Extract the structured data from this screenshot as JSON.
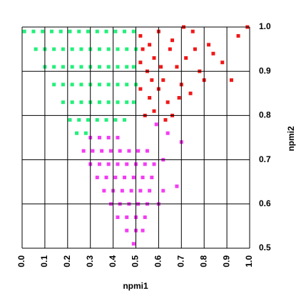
{
  "chart_data": {
    "type": "scatter",
    "xlabel": "npmi1",
    "ylabel": "npmi2",
    "xlim": [
      0,
      1
    ],
    "ylim": [
      0.5,
      1
    ],
    "xticks": [
      {
        "value": 0,
        "label": "0.0"
      },
      0.1,
      0.2,
      0.3,
      0.4,
      0.5,
      0.6,
      0.7,
      0.8,
      0.9,
      {
        "value": 1,
        "label": "1.0"
      }
    ],
    "yticks": [
      0.5,
      0.6,
      0.7,
      0.8,
      0.9,
      {
        "value": 1,
        "label": "1.0"
      }
    ],
    "grid": true,
    "y_axis_side": "right",
    "series": [
      {
        "color": "#22f07a",
        "x": [
          0.01,
          0.05,
          0.09,
          0.13,
          0.17,
          0.21,
          0.25,
          0.29,
          0.33,
          0.37,
          0.41,
          0.45,
          0.49,
          0.06,
          0.1,
          0.14,
          0.18,
          0.22,
          0.26,
          0.3,
          0.34,
          0.38,
          0.42,
          0.46,
          0.5,
          0.1,
          0.14,
          0.18,
          0.22,
          0.26,
          0.3,
          0.34,
          0.38,
          0.42,
          0.46,
          0.49,
          0.14,
          0.18,
          0.22,
          0.26,
          0.3,
          0.34,
          0.38,
          0.42,
          0.46,
          0.5,
          0.18,
          0.22,
          0.26,
          0.3,
          0.34,
          0.38,
          0.42,
          0.46,
          0.49,
          0.21,
          0.25,
          0.29,
          0.33,
          0.37,
          0.41,
          0.45,
          0.24,
          0.28
        ],
        "y": [
          0.99,
          0.99,
          0.99,
          0.99,
          0.99,
          0.99,
          0.99,
          0.99,
          0.99,
          0.99,
          0.99,
          0.99,
          0.99,
          0.95,
          0.95,
          0.95,
          0.95,
          0.95,
          0.95,
          0.95,
          0.95,
          0.95,
          0.95,
          0.95,
          0.95,
          0.91,
          0.91,
          0.91,
          0.91,
          0.91,
          0.91,
          0.91,
          0.91,
          0.91,
          0.91,
          0.91,
          0.87,
          0.87,
          0.87,
          0.87,
          0.87,
          0.87,
          0.87,
          0.87,
          0.87,
          0.87,
          0.83,
          0.83,
          0.83,
          0.83,
          0.83,
          0.83,
          0.83,
          0.83,
          0.83,
          0.79,
          0.79,
          0.79,
          0.79,
          0.79,
          0.79,
          0.79,
          0.76,
          0.76
        ]
      },
      {
        "color": "#f43cf4",
        "x": [
          0.3,
          0.34,
          0.38,
          0.42,
          0.27,
          0.31,
          0.35,
          0.39,
          0.43,
          0.47,
          0.51,
          0.55,
          0.3,
          0.34,
          0.38,
          0.42,
          0.46,
          0.5,
          0.54,
          0.58,
          0.33,
          0.37,
          0.41,
          0.45,
          0.49,
          0.53,
          0.57,
          0.36,
          0.4,
          0.44,
          0.48,
          0.52,
          0.56,
          0.62,
          0.39,
          0.43,
          0.47,
          0.51,
          0.55,
          0.6,
          0.42,
          0.46,
          0.5,
          0.54,
          0.46,
          0.5,
          0.53,
          0.49,
          0.59,
          0.64,
          0.7,
          0.68,
          0.62
        ],
        "y": [
          0.75,
          0.75,
          0.75,
          0.75,
          0.72,
          0.72,
          0.72,
          0.72,
          0.72,
          0.72,
          0.72,
          0.72,
          0.69,
          0.69,
          0.69,
          0.69,
          0.69,
          0.69,
          0.69,
          0.69,
          0.66,
          0.66,
          0.66,
          0.66,
          0.66,
          0.66,
          0.66,
          0.63,
          0.63,
          0.63,
          0.63,
          0.63,
          0.63,
          0.63,
          0.6,
          0.6,
          0.6,
          0.6,
          0.6,
          0.6,
          0.57,
          0.57,
          0.57,
          0.57,
          0.54,
          0.54,
          0.54,
          0.51,
          0.78,
          0.76,
          0.74,
          0.64,
          0.7
        ]
      },
      {
        "color": "#f01818",
        "x": [
          0.52,
          0.56,
          0.6,
          0.66,
          0.71,
          0.75,
          0.52,
          0.55,
          0.58,
          0.62,
          0.65,
          0.68,
          0.72,
          0.52,
          0.56,
          0.6,
          0.64,
          0.54,
          0.58,
          0.66,
          0.7,
          0.74,
          0.78,
          0.82,
          0.84,
          0.88,
          0.92,
          0.95,
          0.99,
          0.53,
          0.57,
          0.61,
          0.63,
          0.69,
          0.76,
          0.8
        ],
        "y": [
          0.98,
          0.96,
          0.99,
          0.97,
          1.0,
          0.99,
          0.92,
          0.9,
          0.93,
          0.88,
          0.95,
          0.91,
          0.93,
          0.86,
          0.84,
          0.86,
          0.83,
          0.8,
          0.81,
          0.8,
          0.87,
          0.85,
          0.9,
          0.96,
          0.94,
          0.92,
          0.88,
          0.98,
          1.0,
          0.95,
          0.88,
          0.91,
          0.79,
          0.84,
          0.95,
          0.88
        ]
      }
    ]
  }
}
